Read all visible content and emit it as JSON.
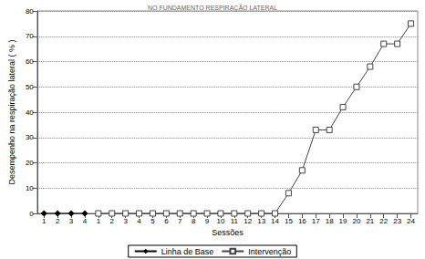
{
  "chart_data": {
    "type": "line",
    "title": "NO FUNDAMENTO RESPIRAÇÃO LATERAL",
    "x_label": "Sessões",
    "y_label": "Desempenho na respiração lateral ( % )",
    "categories": [
      "1",
      "2",
      "3",
      "4",
      "1",
      "2",
      "3",
      "4",
      "5",
      "6",
      "7",
      "8",
      "9",
      "10",
      "11",
      "12",
      "13",
      "14",
      "15",
      "16",
      "17",
      "18",
      "19",
      "20",
      "21",
      "22",
      "23",
      "24"
    ],
    "series": [
      {
        "name": "Linha de Base",
        "color": "#000000",
        "marker": "diamond",
        "line_style": "solid",
        "values": [
          0,
          0,
          0,
          0,
          null,
          null,
          null,
          null,
          null,
          null,
          null,
          null,
          null,
          null,
          null,
          null,
          null,
          null,
          null,
          null,
          null,
          null,
          null,
          null,
          null,
          null,
          null,
          null
        ]
      },
      {
        "name": "Intervenção",
        "color": "#444444",
        "marker": "square",
        "line_style": "solid",
        "values": [
          null,
          null,
          null,
          null,
          0,
          0,
          0,
          0,
          0,
          0,
          0,
          0,
          0,
          0,
          0,
          0,
          0,
          0,
          8,
          17,
          33,
          33,
          42,
          50,
          58,
          67,
          67,
          75
        ]
      }
    ],
    "ylim": [
      0,
      80
    ],
    "yticks": [
      0,
      10,
      20,
      30,
      40,
      50,
      60,
      70,
      80
    ],
    "grid": true,
    "legend": "bottom"
  }
}
